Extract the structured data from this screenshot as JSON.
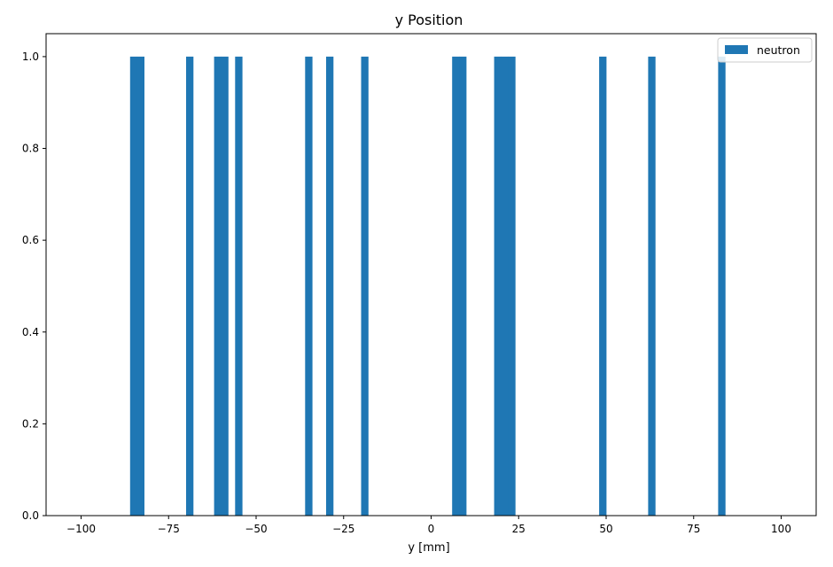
{
  "chart_data": {
    "type": "bar",
    "title": "y Position",
    "xlabel": "y [mm]",
    "ylabel": "",
    "xlim": [
      -110,
      110
    ],
    "ylim": [
      0,
      1.05
    ],
    "bin_width": 2,
    "x_ticks": [
      -100,
      -75,
      -50,
      -25,
      0,
      25,
      50,
      75,
      100
    ],
    "x_tick_labels": [
      "−100",
      "−75",
      "−50",
      "−25",
      "0",
      "25",
      "50",
      "75",
      "100"
    ],
    "y_ticks": [
      0,
      0.2,
      0.4,
      0.6,
      0.8,
      1.0
    ],
    "y_tick_labels": [
      "0.0",
      "0.2",
      "0.4",
      "0.6",
      "0.8",
      "1.0"
    ],
    "grid": false,
    "legend": {
      "placement": "top-right",
      "entries": [
        "neutron"
      ]
    },
    "series": [
      {
        "name": "neutron",
        "color": "#1f77b4",
        "bins": [
          {
            "x0": -86,
            "x1": -84,
            "value": 1
          },
          {
            "x0": -84,
            "x1": -82,
            "value": 1
          },
          {
            "x0": -70,
            "x1": -68,
            "value": 1
          },
          {
            "x0": -62,
            "x1": -60,
            "value": 1
          },
          {
            "x0": -60,
            "x1": -58,
            "value": 1
          },
          {
            "x0": -56,
            "x1": -54,
            "value": 1
          },
          {
            "x0": -36,
            "x1": -34,
            "value": 1
          },
          {
            "x0": -30,
            "x1": -28,
            "value": 1
          },
          {
            "x0": -20,
            "x1": -18,
            "value": 1
          },
          {
            "x0": 6,
            "x1": 8,
            "value": 1
          },
          {
            "x0": 8,
            "x1": 10,
            "value": 1
          },
          {
            "x0": 18,
            "x1": 20,
            "value": 1
          },
          {
            "x0": 20,
            "x1": 22,
            "value": 1
          },
          {
            "x0": 22,
            "x1": 24,
            "value": 1
          },
          {
            "x0": 48,
            "x1": 50,
            "value": 1
          },
          {
            "x0": 62,
            "x1": 64,
            "value": 1
          },
          {
            "x0": 82,
            "x1": 84,
            "value": 1
          }
        ]
      }
    ]
  }
}
